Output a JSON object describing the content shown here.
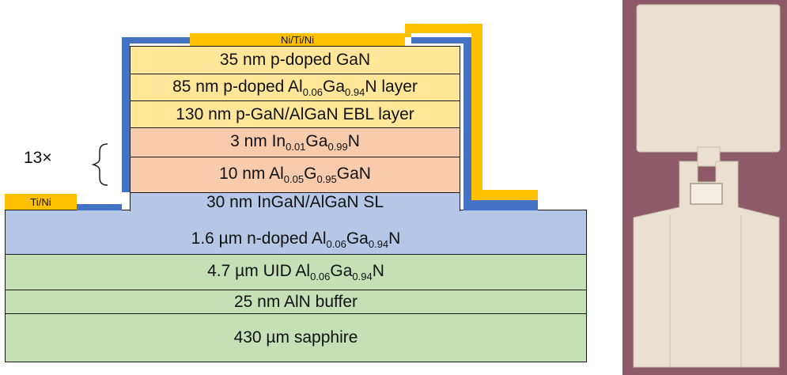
{
  "colors": {
    "pgan": "#ffe699",
    "active": "#f8cbad",
    "nlayer": "#b4c7e7",
    "substrate": "#c5e0b4",
    "contact_gold": "#ffc000",
    "passivation_blue": "#4472c4",
    "photo_bg": "#8c5a68",
    "photo_metal": "#e9e0d2"
  },
  "layers": [
    {
      "name": "p-gan-cap",
      "pre": "35 nm p-doped GaN",
      "parts": []
    },
    {
      "name": "p-algan-layer",
      "pre": "85 nm p-doped Al",
      "parts": [
        {
          "sub": "0.06",
          "text": "Ga"
        },
        {
          "sub": "0.94",
          "text": "N layer"
        }
      ]
    },
    {
      "name": "ebl-layer",
      "pre": "130 nm p-GaN/AlGaN EBL layer",
      "parts": []
    },
    {
      "name": "ingan-well",
      "pre": "3 nm In",
      "parts": [
        {
          "sub": "0.01",
          "text": "Ga"
        },
        {
          "sub": "0.99",
          "text": "N"
        }
      ]
    },
    {
      "name": "algan-barrier",
      "pre": "10 nm Al",
      "parts": [
        {
          "sub": "0.05",
          "text": "G"
        },
        {
          "sub": "0.95",
          "text": "GaN"
        }
      ]
    },
    {
      "name": "superlattice",
      "pre": "30 nm InGaN/AlGaN SL",
      "parts": []
    },
    {
      "name": "n-algan",
      "pre": "1.6 µm n-doped Al",
      "parts": [
        {
          "sub": "0.06",
          "text": "Ga"
        },
        {
          "sub": "0.94",
          "text": "N"
        }
      ]
    },
    {
      "name": "uid-algan",
      "pre": "4.7 µm UID Al",
      "parts": [
        {
          "sub": "0.06",
          "text": "Ga"
        },
        {
          "sub": "0.94",
          "text": "N"
        }
      ]
    },
    {
      "name": "aln-buffer",
      "pre": "25 nm AlN buffer",
      "parts": []
    },
    {
      "name": "sapphire",
      "pre": "430 µm sapphire",
      "parts": []
    }
  ],
  "contacts": {
    "p_contact": "Ni/Ti/Ni",
    "n_contact": "Ti/Ni"
  },
  "repeat_label": "13×"
}
